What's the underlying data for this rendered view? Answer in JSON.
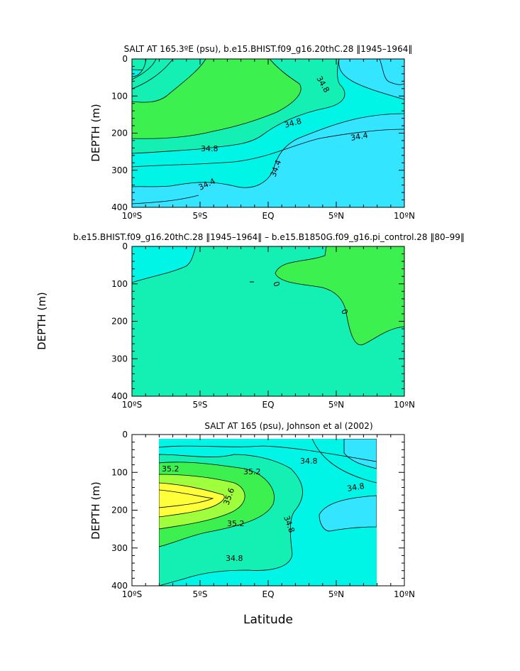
{
  "figure": {
    "colors": {
      "cyan": "#33e5ff",
      "aqua": "#00f5e6",
      "teal": "#14f0b4",
      "green": "#3cf04f",
      "lime": "#a0ff3c",
      "yellow": "#ffff3a"
    }
  },
  "chart_data": [
    {
      "type": "heatmap",
      "title": "SALT AT 165.3ºE (psu), b.e15.BHIST.f09_g16.20thC.28 ‖1945–1964‖",
      "xlabel": "",
      "ylabel": "DEPTH (m)",
      "xlim": [
        -10,
        10
      ],
      "ylim": [
        400,
        0
      ],
      "x_tick_labels": [
        "10ºS",
        "5ºS",
        "EQ",
        "5ºN",
        "10ºN"
      ],
      "y_tick_labels": [
        "0",
        "100",
        "200",
        "300",
        "400"
      ],
      "contour_labels": [
        "34.8",
        "34.8",
        "34.8",
        "34.4",
        "34.4",
        "34.4"
      ]
    },
    {
      "type": "heatmap",
      "title": "b.e15.BHIST.f09_g16.20thC.28 ‖1945–1964‖ – b.e15.B1850G.f09_g16.pi_control.28 ‖80–99‖",
      "xlabel": "",
      "ylabel": "DEPTH (m)",
      "xlim": [
        -10,
        10
      ],
      "ylim": [
        400,
        0
      ],
      "x_tick_labels": [
        "10ºS",
        "5ºS",
        "EQ",
        "5ºN",
        "10ºN"
      ],
      "y_tick_labels": [
        "0",
        "100",
        "200",
        "300",
        "400"
      ],
      "contour_labels": [
        "0",
        "0"
      ]
    },
    {
      "type": "heatmap",
      "title": "SALT AT 165 (psu), Johnson et al (2002)",
      "xlabel": "Latitude",
      "ylabel": "DEPTH (m)",
      "xlim": [
        -10,
        10
      ],
      "ylim": [
        400,
        0
      ],
      "data_xlim": [
        -8,
        8
      ],
      "data_ylim": [
        10,
        400
      ],
      "x_tick_labels": [
        "10ºS",
        "5ºS",
        "EQ",
        "5ºN",
        "10ºN"
      ],
      "y_tick_labels": [
        "0",
        "100",
        "200",
        "300",
        "400"
      ],
      "contour_labels": [
        "35.2",
        "35.2",
        "35.6",
        "35.2",
        "34.8",
        "34.8",
        "34.8",
        "34.8"
      ]
    }
  ]
}
